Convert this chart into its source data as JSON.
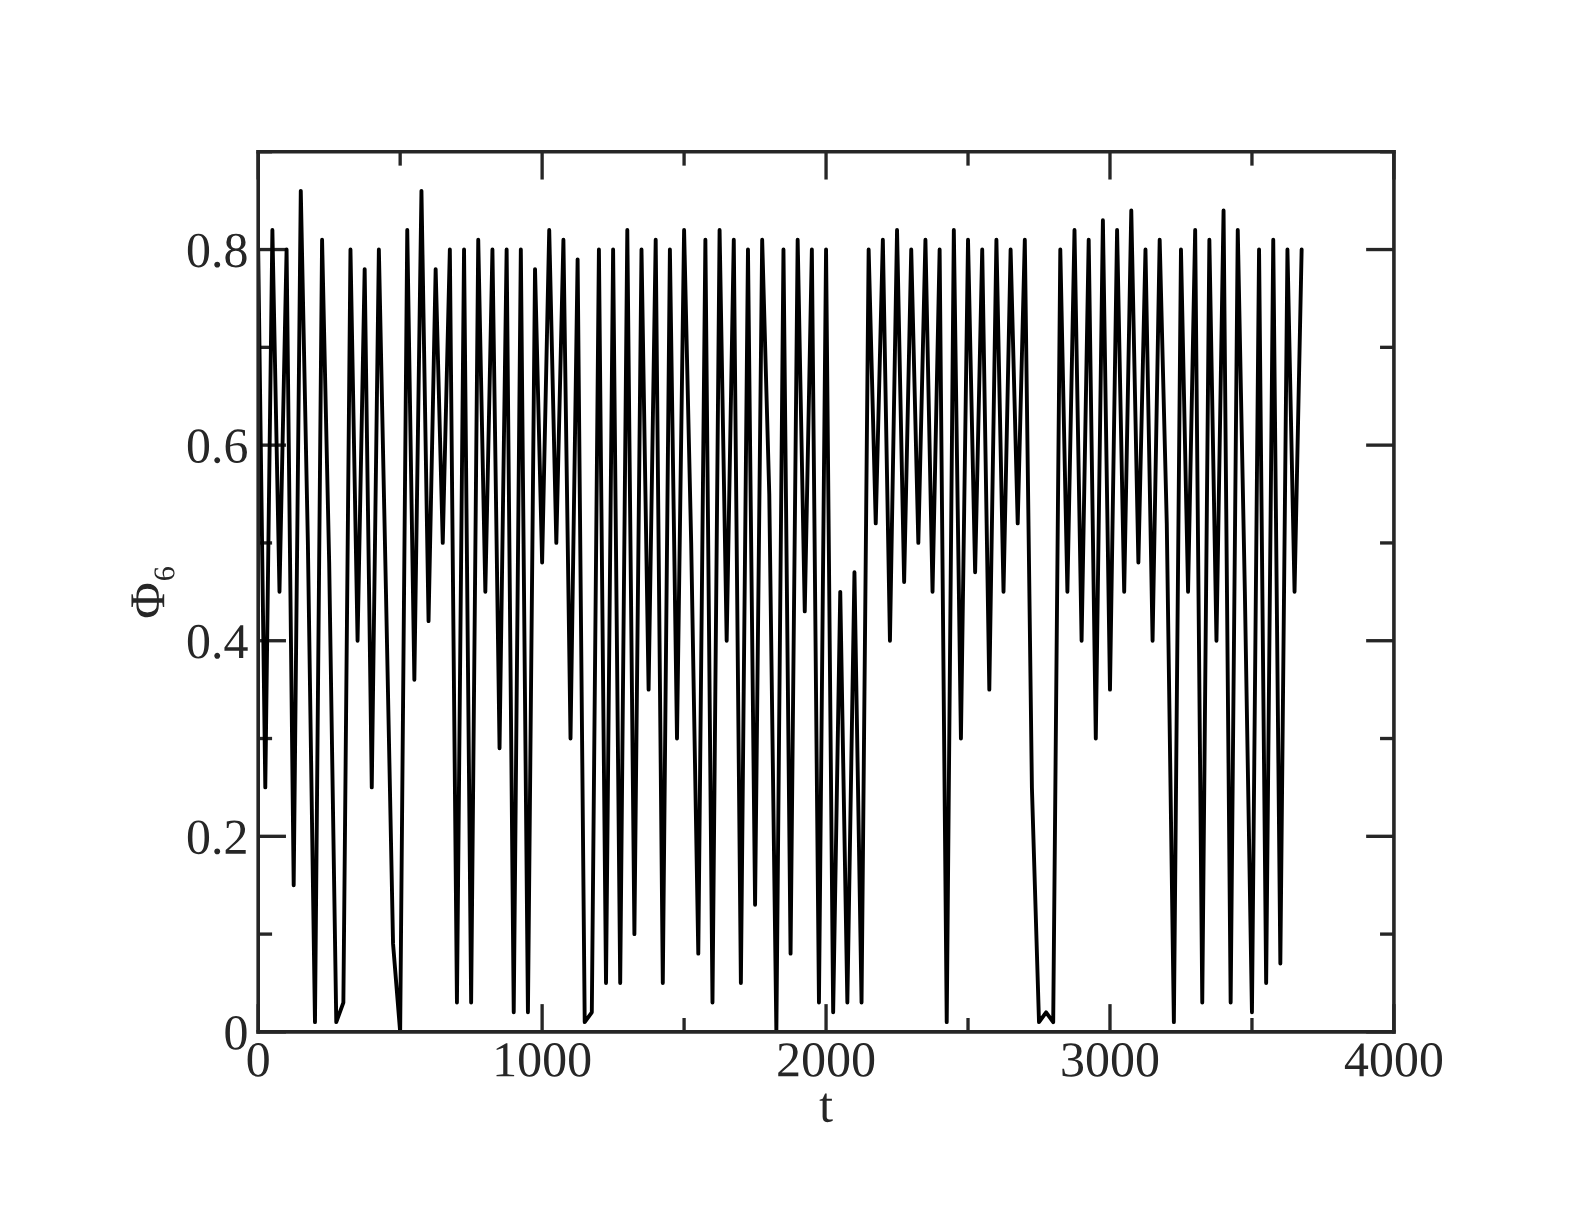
{
  "chart_data": {
    "type": "line",
    "xlabel": "t",
    "ylabel": "Φ₆",
    "xlim": [
      0,
      4000
    ],
    "xticks": [
      0,
      1000,
      2000,
      3000,
      4000
    ],
    "ylim": [
      0,
      0.9
    ],
    "yticks": [
      0,
      0.2,
      0.4,
      0.6,
      0.8
    ],
    "grid": false,
    "marker": "none",
    "line_style": "solid",
    "series": [
      {
        "color": "#000000",
        "x": [
          0,
          25,
          50,
          75,
          100,
          125,
          150,
          175,
          200,
          225,
          250,
          275,
          300,
          325,
          350,
          375,
          400,
          425,
          450,
          475,
          500,
          525,
          550,
          575,
          600,
          625,
          650,
          675,
          700,
          725,
          750,
          775,
          800,
          825,
          850,
          875,
          900,
          925,
          950,
          975,
          1000,
          1025,
          1050,
          1075,
          1100,
          1125,
          1150,
          1175,
          1200,
          1225,
          1250,
          1275,
          1300,
          1325,
          1350,
          1375,
          1400,
          1425,
          1450,
          1475,
          1500,
          1525,
          1550,
          1575,
          1600,
          1625,
          1650,
          1675,
          1700,
          1725,
          1750,
          1775,
          1800,
          1825,
          1850,
          1875,
          1900,
          1925,
          1950,
          1975,
          2000,
          2025,
          2050,
          2075,
          2100,
          2125,
          2150,
          2175,
          2200,
          2225,
          2250,
          2275,
          2300,
          2325,
          2350,
          2375,
          2400,
          2425,
          2450,
          2475,
          2500,
          2525,
          2550,
          2575,
          2600,
          2625,
          2650,
          2675,
          2700,
          2725,
          2750,
          2775,
          2800,
          2825,
          2850,
          2875,
          2900,
          2925,
          2950,
          2975,
          3000,
          3025,
          3050,
          3075,
          3100,
          3125,
          3150,
          3175,
          3200,
          3225,
          3250,
          3275,
          3300,
          3325,
          3350,
          3375,
          3400,
          3425,
          3450,
          3475,
          3500,
          3525,
          3550,
          3575,
          3600,
          3625,
          3650,
          3675
        ],
        "values": [
          0.8,
          0.25,
          0.82,
          0.45,
          0.8,
          0.15,
          0.86,
          0.5,
          0.01,
          0.81,
          0.48,
          0.01,
          0.03,
          0.8,
          0.4,
          0.78,
          0.25,
          0.8,
          0.45,
          0.09,
          0.0,
          0.82,
          0.36,
          0.86,
          0.42,
          0.78,
          0.5,
          0.8,
          0.03,
          0.8,
          0.03,
          0.81,
          0.45,
          0.8,
          0.29,
          0.8,
          0.02,
          0.8,
          0.02,
          0.78,
          0.48,
          0.82,
          0.5,
          0.81,
          0.3,
          0.79,
          0.01,
          0.02,
          0.8,
          0.05,
          0.8,
          0.05,
          0.82,
          0.1,
          0.8,
          0.35,
          0.81,
          0.05,
          0.8,
          0.3,
          0.82,
          0.5,
          0.08,
          0.81,
          0.03,
          0.82,
          0.4,
          0.81,
          0.05,
          0.8,
          0.13,
          0.81,
          0.55,
          0.0,
          0.8,
          0.08,
          0.81,
          0.43,
          0.8,
          0.03,
          0.8,
          0.02,
          0.45,
          0.03,
          0.47,
          0.03,
          0.8,
          0.52,
          0.81,
          0.4,
          0.82,
          0.46,
          0.8,
          0.5,
          0.81,
          0.45,
          0.8,
          0.01,
          0.82,
          0.3,
          0.81,
          0.47,
          0.8,
          0.35,
          0.81,
          0.45,
          0.8,
          0.52,
          0.81,
          0.25,
          0.01,
          0.02,
          0.01,
          0.8,
          0.45,
          0.82,
          0.4,
          0.81,
          0.3,
          0.83,
          0.35,
          0.82,
          0.45,
          0.84,
          0.48,
          0.8,
          0.4,
          0.81,
          0.52,
          0.01,
          0.8,
          0.45,
          0.82,
          0.03,
          0.81,
          0.4,
          0.84,
          0.03,
          0.82,
          0.45,
          0.02,
          0.8,
          0.05,
          0.81,
          0.07,
          0.8,
          0.45,
          0.8
        ]
      }
    ]
  }
}
